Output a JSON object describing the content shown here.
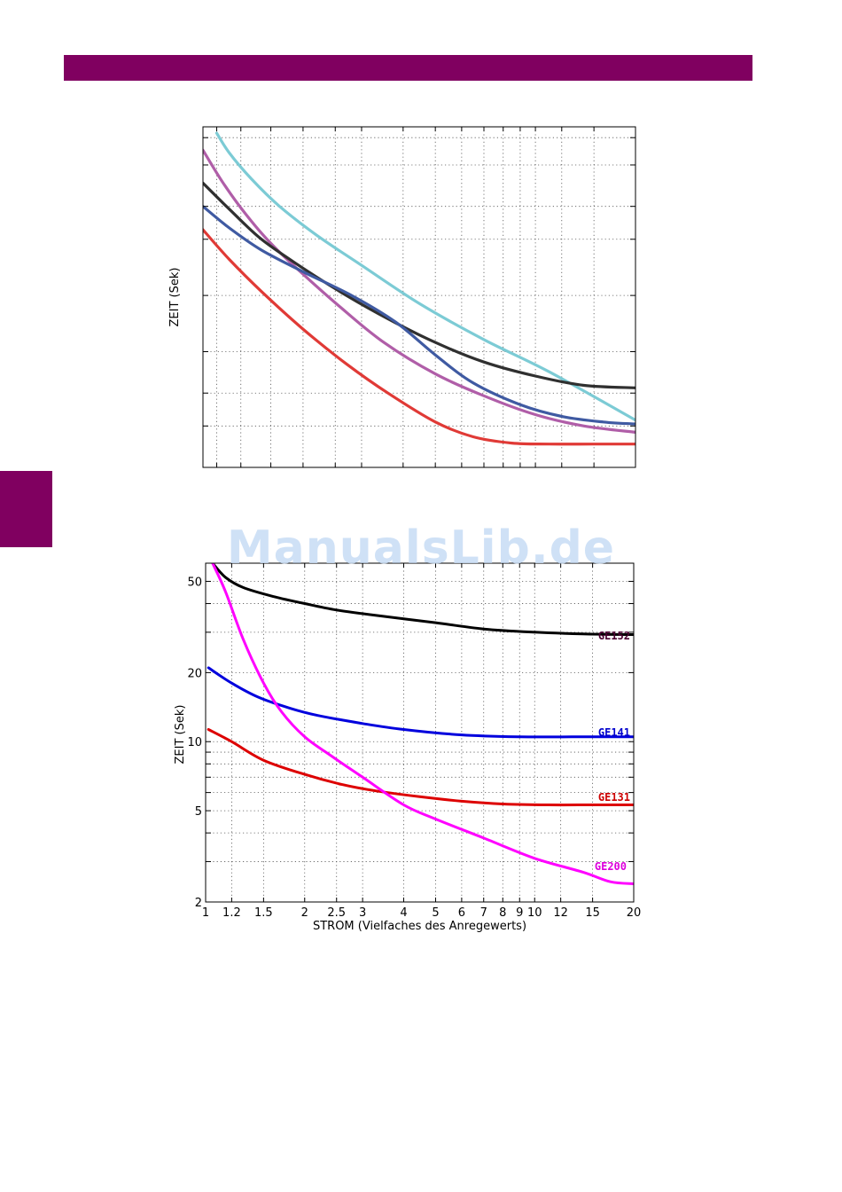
{
  "page": {
    "bar_color": "#800060",
    "tab_color": "#800060",
    "watermark": "ManualsLib.de"
  },
  "chart_data": [
    {
      "type": "line",
      "title": "",
      "xlabel": "",
      "ylabel": "ZEIT (Sek)",
      "xscale": "log",
      "yscale": "log",
      "xlim": [
        1,
        20
      ],
      "ylim": [
        1.2,
        80
      ],
      "tick_labels_shown": false,
      "grid": true,
      "series": [
        {
          "color": "#7ccbd5",
          "x": [
            1.1,
            1.2,
            1.4,
            1.7,
            2.2,
            3,
            4.5,
            7,
            11,
            20
          ],
          "y": [
            74,
            58,
            42,
            30,
            21,
            14.5,
            9,
            5.8,
            3.9,
            2.15
          ]
        },
        {
          "color": "#b05ea8",
          "x": [
            1.0,
            1.15,
            1.35,
            1.6,
            2,
            2.6,
            3.5,
            5,
            7,
            10,
            14,
            20
          ],
          "y": [
            60,
            40,
            27,
            19,
            13,
            8.6,
            5.6,
            3.8,
            2.9,
            2.3,
            2.0,
            1.85
          ]
        },
        {
          "color": "#303030",
          "x": [
            1.0,
            1.2,
            1.5,
            2,
            2.7,
            3.6,
            5,
            7,
            10,
            14,
            20
          ],
          "y": [
            40,
            29,
            20,
            14,
            10,
            7.5,
            5.6,
            4.4,
            3.7,
            3.3,
            3.2
          ]
        },
        {
          "color": "#3f5aa2",
          "x": [
            1.0,
            1.2,
            1.5,
            2,
            2.8,
            3.8,
            5,
            6.5,
            9,
            12,
            16,
            20
          ],
          "y": [
            30,
            23,
            17.5,
            13.4,
            10,
            7.2,
            4.8,
            3.4,
            2.6,
            2.25,
            2.1,
            2.05
          ]
        },
        {
          "color": "#e03a36",
          "x": [
            1.0,
            1.2,
            1.5,
            2,
            2.7,
            3.6,
            5,
            6.5,
            8.5,
            11,
            15,
            20
          ],
          "y": [
            22.5,
            15.6,
            10.5,
            6.6,
            4.3,
            3.0,
            2.1,
            1.75,
            1.62,
            1.6,
            1.6,
            1.6
          ]
        }
      ]
    },
    {
      "type": "line",
      "title": "",
      "xlabel": "STROM (Vielfaches des Anregewerts)",
      "ylabel": "ZEIT (Sek)",
      "xscale": "log",
      "yscale": "log",
      "xlim": [
        1,
        20
      ],
      "ylim": [
        2,
        60
      ],
      "grid": true,
      "xticks": [
        1,
        1.2,
        1.5,
        2,
        2.5,
        3,
        4,
        5,
        6,
        7,
        8,
        9,
        10,
        12,
        15,
        20
      ],
      "xtick_labels": [
        "1",
        "1.2",
        "1.5",
        "2",
        "2.5",
        "3",
        "4",
        "5",
        "6",
        "7",
        "8",
        "9",
        "10",
        "12",
        "15",
        "20"
      ],
      "yticks": [
        2,
        5,
        10,
        20,
        50
      ],
      "ytick_labels": [
        "2",
        "5",
        "10",
        "20",
        "50"
      ],
      "series": [
        {
          "name": "GE152",
          "color": "#000000",
          "label_color": "#4a0030",
          "x": [
            1.05,
            1.15,
            1.3,
            1.6,
            2,
            2.5,
            3.3,
            5,
            7,
            10,
            14,
            20
          ],
          "y": [
            60,
            52,
            47,
            43,
            40,
            37.5,
            35.5,
            33,
            31,
            30,
            29.5,
            29.3
          ]
        },
        {
          "name": "GE141",
          "color": "#0000dd",
          "label_color": "#0000cc",
          "x": [
            1.02,
            1.2,
            1.45,
            1.8,
            2.2,
            3,
            4,
            6,
            9,
            13,
            20
          ],
          "y": [
            21,
            18,
            15.6,
            14,
            13,
            12,
            11.3,
            10.7,
            10.5,
            10.5,
            10.5
          ]
        },
        {
          "name": "GE131",
          "color": "#dd0000",
          "label_color": "#cc0000",
          "x": [
            1.02,
            1.2,
            1.5,
            2,
            2.6,
            3.3,
            4.5,
            6,
            8,
            11,
            15,
            20
          ],
          "y": [
            11.3,
            10,
            8.3,
            7.2,
            6.5,
            6.1,
            5.75,
            5.5,
            5.35,
            5.3,
            5.3,
            5.3
          ]
        },
        {
          "name": "GE200",
          "color": "#ff00ff",
          "label_color": "#dd00dd",
          "x": [
            1.05,
            1.15,
            1.3,
            1.5,
            1.7,
            2,
            2.4,
            3,
            4,
            5,
            7,
            10,
            14,
            17,
            20
          ],
          "y": [
            60,
            45,
            28,
            18,
            13.5,
            10.5,
            8.7,
            7,
            5.3,
            4.6,
            3.8,
            3.1,
            2.7,
            2.45,
            2.4
          ]
        }
      ]
    }
  ]
}
